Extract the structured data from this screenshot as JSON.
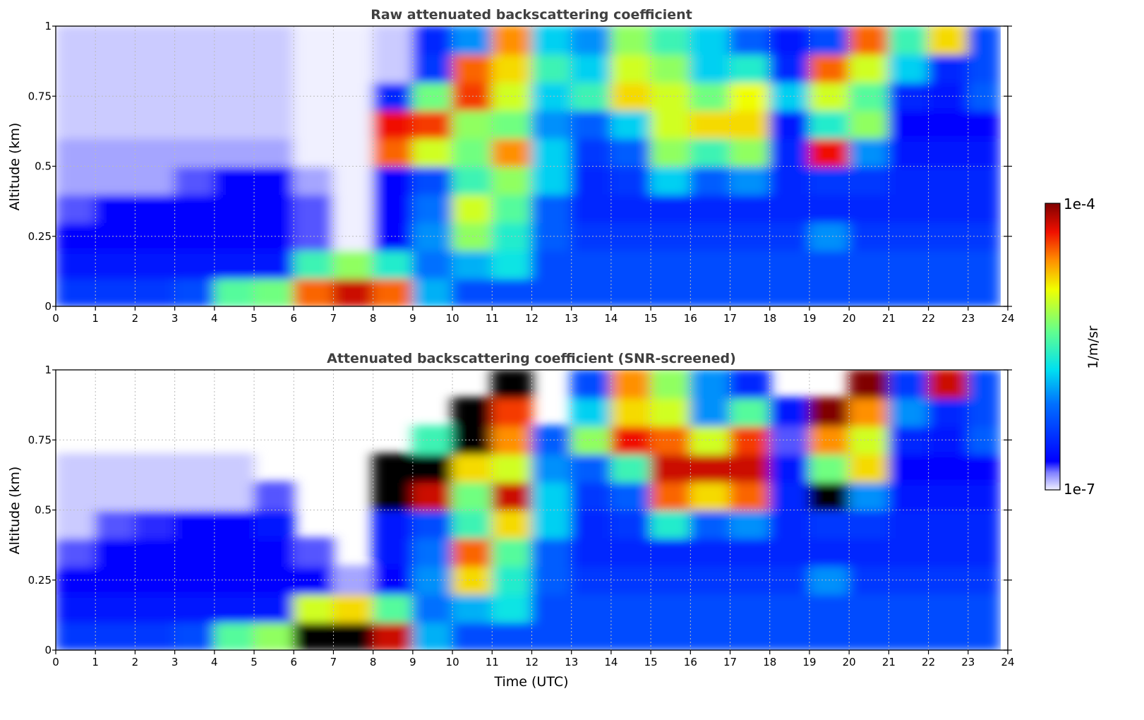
{
  "chart_data": [
    {
      "type": "heatmap",
      "title": "Raw attenuated backscattering coefficient",
      "xlabel": "",
      "ylabel": "Altitude (km)",
      "xlim": [
        0,
        24
      ],
      "ylim": [
        0,
        1
      ],
      "x_ticks": [
        "0",
        "1",
        "2",
        "3",
        "4",
        "5",
        "6",
        "7",
        "8",
        "9",
        "10",
        "11",
        "12",
        "13",
        "14",
        "15",
        "16",
        "17",
        "18",
        "19",
        "20",
        "21",
        "22",
        "23",
        "24"
      ],
      "y_ticks": [
        "0",
        "0.25",
        "0.5",
        "0.75",
        "1"
      ],
      "grid": true,
      "x_bin_hours": 1,
      "y_bin_km": 0.1,
      "value_units": "log10(1/m/sr)",
      "rows_bottom_to_top": [
        [
          -6.4,
          -6.4,
          -6.4,
          -6.3,
          -5.4,
          -5.3,
          -4.5,
          -4.2,
          -4.5,
          -5.9,
          -6.3,
          -6.3,
          -6.3,
          -6.3,
          -6.3,
          -6.3,
          -6.3,
          -6.3,
          -6.3,
          -6.3,
          -6.3,
          -6.3,
          -6.3,
          -6.3
        ],
        [
          -6.6,
          -6.6,
          -6.6,
          -6.6,
          -6.6,
          -6.6,
          -5.5,
          -5.2,
          -5.6,
          -6.1,
          -5.9,
          -5.7,
          -6.3,
          -6.3,
          -6.3,
          -6.3,
          -6.3,
          -6.3,
          -6.3,
          -6.3,
          -6.3,
          -6.3,
          -6.3,
          -6.3
        ],
        [
          -6.7,
          -6.7,
          -6.7,
          -6.7,
          -6.7,
          -6.7,
          -6.8,
          -7.0,
          -6.7,
          -6.0,
          -5.2,
          -5.6,
          -6.2,
          -6.4,
          -6.4,
          -6.4,
          -6.4,
          -6.4,
          -6.4,
          -6.0,
          -6.4,
          -6.4,
          -6.4,
          -6.4
        ],
        [
          -6.8,
          -6.7,
          -6.7,
          -6.7,
          -6.7,
          -6.7,
          -6.8,
          -7.0,
          -6.7,
          -6.1,
          -5.0,
          -5.4,
          -6.2,
          -6.5,
          -6.5,
          -6.5,
          -6.5,
          -6.5,
          -6.5,
          -6.5,
          -6.5,
          -6.5,
          -6.5,
          -6.5
        ],
        [
          -6.9,
          -6.9,
          -6.9,
          -6.8,
          -6.7,
          -6.7,
          -6.9,
          -7.0,
          -6.7,
          -6.3,
          -5.5,
          -5.2,
          -5.8,
          -6.5,
          -6.4,
          -5.8,
          -6.2,
          -6.0,
          -6.5,
          -6.4,
          -6.4,
          -6.5,
          -6.5,
          -6.5
        ],
        [
          -6.9,
          -6.9,
          -6.9,
          -6.9,
          -6.9,
          -6.9,
          -7.0,
          -7.0,
          -4.5,
          -5.0,
          -5.3,
          -4.6,
          -5.8,
          -6.4,
          -6.2,
          -5.2,
          -5.5,
          -5.2,
          -6.5,
          -4.3,
          -6.0,
          -6.6,
          -6.6,
          -6.6
        ],
        [
          -6.95,
          -6.95,
          -6.95,
          -6.95,
          -6.95,
          -6.95,
          -7.0,
          -7.0,
          -4.3,
          -4.4,
          -5.2,
          -5.3,
          -6.0,
          -6.2,
          -5.8,
          -5.0,
          -4.8,
          -4.8,
          -6.6,
          -5.6,
          -5.2,
          -6.7,
          -6.7,
          -6.7
        ],
        [
          -6.95,
          -6.95,
          -6.95,
          -6.95,
          -6.95,
          -6.95,
          -7.0,
          -7.0,
          -6.5,
          -5.3,
          -4.4,
          -5.0,
          -5.8,
          -5.5,
          -4.8,
          -5.0,
          -5.3,
          -4.9,
          -5.8,
          -5.0,
          -5.4,
          -6.5,
          -6.6,
          -6.2
        ],
        [
          -6.95,
          -6.95,
          -6.95,
          -6.95,
          -6.95,
          -6.95,
          -7.0,
          -7.0,
          -6.95,
          -6.4,
          -4.5,
          -4.8,
          -5.5,
          -5.8,
          -5.0,
          -5.2,
          -5.8,
          -5.6,
          -6.5,
          -4.5,
          -5.0,
          -5.8,
          -6.5,
          -6.3
        ],
        [
          -6.95,
          -6.95,
          -6.95,
          -6.95,
          -6.95,
          -6.95,
          -7.0,
          -7.0,
          -6.95,
          -6.5,
          -6.0,
          -4.6,
          -5.8,
          -6.0,
          -5.2,
          -5.5,
          -5.8,
          -6.2,
          -6.6,
          -6.3,
          -4.5,
          -5.5,
          -4.8,
          -6.3
        ]
      ]
    },
    {
      "type": "heatmap",
      "title": "Attenuated backscattering coefficient (SNR-screened)",
      "xlabel": "Time (UTC)",
      "ylabel": "Altitude (km)",
      "xlim": [
        0,
        24
      ],
      "ylim": [
        0,
        1
      ],
      "x_ticks": [
        "0",
        "1",
        "2",
        "3",
        "4",
        "5",
        "6",
        "7",
        "8",
        "9",
        "10",
        "11",
        "12",
        "13",
        "14",
        "15",
        "16",
        "17",
        "18",
        "19",
        "20",
        "21",
        "22",
        "23",
        "24"
      ],
      "y_ticks": [
        "0",
        "0.25",
        "0.5",
        "0.75",
        "1"
      ],
      "grid": true,
      "x_bin_hours": 1,
      "y_bin_km": 0.1,
      "value_units": "log10(1/m/sr)",
      "rows_bottom_to_top": [
        [
          -6.4,
          -6.4,
          -6.4,
          -6.3,
          -5.4,
          -5.2,
          -3.8,
          -3.8,
          -4.2,
          -5.9,
          -6.3,
          -6.3,
          -6.3,
          -6.3,
          -6.3,
          -6.3,
          -6.3,
          -6.3,
          -6.3,
          -6.3,
          -6.3,
          -6.3,
          -6.3,
          -6.3
        ],
        [
          -6.6,
          -6.6,
          -6.6,
          -6.6,
          -6.6,
          -6.6,
          -5.0,
          -4.8,
          -5.4,
          -6.1,
          -5.9,
          -5.7,
          -6.3,
          -6.3,
          -6.3,
          -6.3,
          -6.3,
          -6.3,
          -6.3,
          -6.3,
          -6.3,
          -6.3,
          -6.3,
          -6.3
        ],
        [
          -6.7,
          -6.7,
          -6.7,
          -6.7,
          -6.7,
          -6.7,
          -6.7,
          -6.9,
          -6.7,
          -6.0,
          -4.8,
          -5.6,
          -6.2,
          -6.4,
          -6.4,
          -6.4,
          -6.4,
          -6.4,
          -6.4,
          -6.0,
          -6.4,
          -6.4,
          -6.4,
          -6.4
        ],
        [
          -6.8,
          -6.7,
          -6.7,
          -6.7,
          -6.7,
          -6.7,
          -6.8,
          null,
          -6.6,
          -6.1,
          -4.5,
          -5.4,
          -6.2,
          -6.5,
          -6.5,
          -6.5,
          -6.5,
          -6.5,
          -6.5,
          -6.5,
          -6.5,
          -6.5,
          -6.5,
          -6.5
        ],
        [
          -6.95,
          -6.8,
          -6.75,
          -6.7,
          -6.7,
          -6.6,
          null,
          null,
          -6.6,
          -6.3,
          -5.5,
          -4.8,
          -5.8,
          -6.5,
          -6.4,
          -5.6,
          -6.2,
          -6.0,
          -6.5,
          -6.4,
          -6.4,
          -6.5,
          -6.5,
          -6.5
        ],
        [
          -6.95,
          -6.95,
          -6.95,
          -6.95,
          -6.95,
          -6.8,
          null,
          null,
          -3.8,
          -4.2,
          -5.3,
          -4.2,
          -5.8,
          -6.4,
          -6.2,
          -4.5,
          -4.8,
          -4.5,
          -6.5,
          -3.9,
          -6.0,
          -6.6,
          -6.6,
          -6.6
        ],
        [
          -6.95,
          -6.95,
          -6.95,
          -6.95,
          -6.95,
          null,
          null,
          null,
          -3.8,
          -3.9,
          -4.8,
          -5.0,
          -6.0,
          -6.2,
          -5.5,
          -4.2,
          -4.2,
          -4.2,
          -6.6,
          -5.3,
          -4.8,
          -6.7,
          -6.7,
          -6.7
        ],
        [
          null,
          null,
          null,
          null,
          null,
          null,
          null,
          null,
          null,
          -5.5,
          -3.9,
          -4.6,
          -6.2,
          -5.2,
          -4.3,
          -4.5,
          -5.0,
          -4.4,
          -6.8,
          -4.6,
          -5.0,
          -6.5,
          -6.6,
          -6.2
        ],
        [
          null,
          null,
          null,
          null,
          null,
          null,
          null,
          null,
          null,
          null,
          -3.9,
          -4.4,
          null,
          -5.8,
          -4.8,
          -5.0,
          -6.0,
          -5.4,
          -6.6,
          -4.0,
          -4.6,
          -6.0,
          -6.5,
          -6.3
        ],
        [
          null,
          null,
          null,
          null,
          null,
          null,
          null,
          null,
          null,
          null,
          null,
          -3.8,
          null,
          -6.3,
          -4.6,
          -5.2,
          -6.0,
          -6.5,
          null,
          null,
          -4.0,
          -6.4,
          -4.2,
          -6.3
        ]
      ]
    }
  ],
  "colorbar": {
    "label": "1/m/sr",
    "max_label": "1e-4",
    "min_label": "1e-7",
    "range_log10": [
      -7,
      -4
    ],
    "colormap": "jet-with-lavender-low"
  }
}
